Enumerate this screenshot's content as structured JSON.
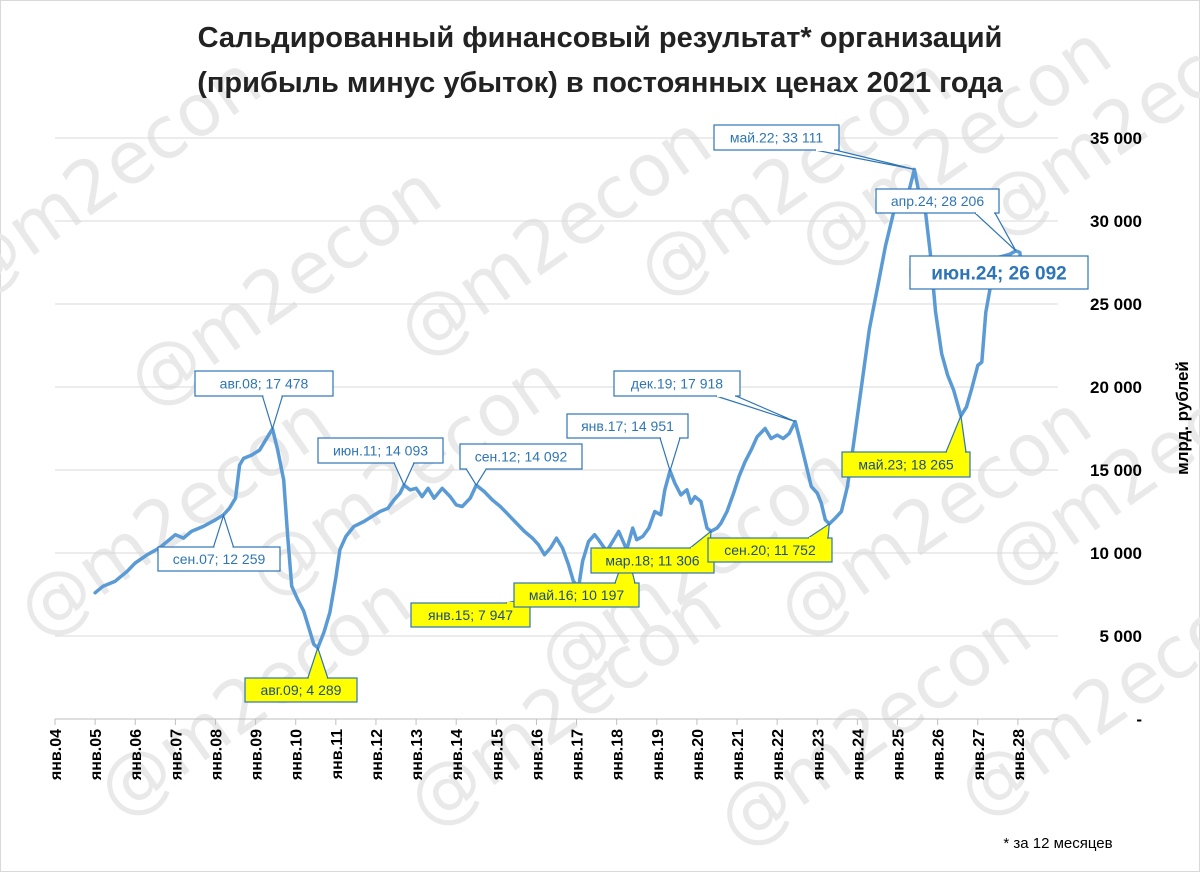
{
  "watermark": "@m2econ",
  "footnote": "* за 12 месяцев",
  "chart_data": {
    "type": "line",
    "title": [
      "Сальдированный финансовый результат* организаций",
      "(прибыль минус убыток) в постоянных ценах 2021 года"
    ],
    "ylabel": "млрд. рублей",
    "xlabel": "",
    "ylim": [
      0,
      35000
    ],
    "yticks": [
      0,
      5000,
      10000,
      15000,
      20000,
      25000,
      30000,
      35000
    ],
    "ytick_labels": [
      "-",
      "5 000",
      "10 000",
      "15 000",
      "20 000",
      "25 000",
      "30 000",
      "35 000"
    ],
    "xlim": [
      2004,
      2029
    ],
    "xtick_labels": [
      "янв.04",
      "янв.05",
      "янв.06",
      "янв.07",
      "янв.08",
      "янв.09",
      "янв.10",
      "янв.11",
      "янв.12",
      "янв.13",
      "янв.14",
      "янв.15",
      "янв.16",
      "янв.17",
      "янв.18",
      "янв.19",
      "янв.20",
      "янв.21",
      "янв.22",
      "янв.23",
      "янв.24",
      "янв.25",
      "янв.26",
      "янв.27",
      "янв.28"
    ],
    "grid": "horizontal",
    "series_color": "#5b9bd5",
    "series": [
      {
        "name": "",
        "points": [
          [
            2005.0,
            7600
          ],
          [
            2005.2,
            8000
          ],
          [
            2005.5,
            8300
          ],
          [
            2005.8,
            8900
          ],
          [
            2006.0,
            9400
          ],
          [
            2006.3,
            9900
          ],
          [
            2006.6,
            10300
          ],
          [
            2006.9,
            10900
          ],
          [
            2007.0,
            11100
          ],
          [
            2007.2,
            10900
          ],
          [
            2007.4,
            11300
          ],
          [
            2007.7,
            11600
          ],
          [
            2008.0,
            12000
          ],
          [
            2008.2,
            12300
          ],
          [
            2008.35,
            12700
          ],
          [
            2008.5,
            13300
          ],
          [
            2008.6,
            15300
          ],
          [
            2008.7,
            15700
          ],
          [
            2008.9,
            15900
          ],
          [
            2009.1,
            16200
          ],
          [
            2009.3,
            17000
          ],
          [
            2009.42,
            17478
          ],
          [
            2009.55,
            16200
          ],
          [
            2009.7,
            14400
          ],
          [
            2009.8,
            11000
          ],
          [
            2009.9,
            8000
          ],
          [
            2010.05,
            7200
          ],
          [
            2010.2,
            6500
          ],
          [
            2010.35,
            5300
          ],
          [
            2010.45,
            4500
          ],
          [
            2010.55,
            4289
          ],
          [
            2010.7,
            5200
          ],
          [
            2010.85,
            6400
          ],
          [
            2011.0,
            8500
          ],
          [
            2011.1,
            10200
          ],
          [
            2011.25,
            11000
          ],
          [
            2011.45,
            11600
          ],
          [
            2011.7,
            11900
          ],
          [
            2011.9,
            12200
          ],
          [
            2012.1,
            12500
          ],
          [
            2012.3,
            12700
          ],
          [
            2012.45,
            13200
          ],
          [
            2012.6,
            13600
          ],
          [
            2012.7,
            14093
          ],
          [
            2012.85,
            13800
          ],
          [
            2013.0,
            13900
          ],
          [
            2013.15,
            13400
          ],
          [
            2013.3,
            13900
          ],
          [
            2013.45,
            13300
          ],
          [
            2013.65,
            13900
          ],
          [
            2013.85,
            13400
          ],
          [
            2014.0,
            12900
          ],
          [
            2014.15,
            12800
          ],
          [
            2014.35,
            13300
          ],
          [
            2014.5,
            14092
          ],
          [
            2014.7,
            13700
          ],
          [
            2014.9,
            13200
          ],
          [
            2015.1,
            12800
          ],
          [
            2015.3,
            12300
          ],
          [
            2015.5,
            11800
          ],
          [
            2015.7,
            11300
          ],
          [
            2015.9,
            10900
          ],
          [
            2016.05,
            10500
          ],
          [
            2016.2,
            9900
          ],
          [
            2016.35,
            10300
          ],
          [
            2016.5,
            10900
          ],
          [
            2016.65,
            10300
          ],
          [
            2016.8,
            9300
          ],
          [
            2016.92,
            8300
          ],
          [
            2017.05,
            7947
          ],
          [
            2017.15,
            9500
          ],
          [
            2017.3,
            10700
          ],
          [
            2017.45,
            11100
          ],
          [
            2017.55,
            10800
          ],
          [
            2017.75,
            10100
          ],
          [
            2017.9,
            10700
          ],
          [
            2018.05,
            11300
          ],
          [
            2018.25,
            10197
          ],
          [
            2018.4,
            11500
          ],
          [
            2018.5,
            10800
          ],
          [
            2018.65,
            11000
          ],
          [
            2018.8,
            11500
          ],
          [
            2018.95,
            12500
          ],
          [
            2019.1,
            12300
          ],
          [
            2019.2,
            13800
          ],
          [
            2019.33,
            14951
          ],
          [
            2019.45,
            14200
          ],
          [
            2019.6,
            13500
          ],
          [
            2019.75,
            13800
          ],
          [
            2019.85,
            13000
          ],
          [
            2019.95,
            13400
          ],
          [
            2020.1,
            13100
          ],
          [
            2020.25,
            11500
          ],
          [
            2020.35,
            11306
          ],
          [
            2020.5,
            11500
          ],
          [
            2020.6,
            11800
          ],
          [
            2020.75,
            12500
          ],
          [
            2020.9,
            13500
          ],
          [
            2021.05,
            14600
          ],
          [
            2021.2,
            15500
          ],
          [
            2021.35,
            16200
          ],
          [
            2021.5,
            17000
          ],
          [
            2021.7,
            17500
          ],
          [
            2021.85,
            16900
          ],
          [
            2022.0,
            17100
          ],
          [
            2022.15,
            16900
          ],
          [
            2022.3,
            17200
          ],
          [
            2022.45,
            17918
          ],
          [
            2022.6,
            16500
          ],
          [
            2022.75,
            15000
          ],
          [
            2022.85,
            14000
          ],
          [
            2023.0,
            13600
          ],
          [
            2023.1,
            13000
          ],
          [
            2023.2,
            12000
          ],
          [
            2023.3,
            11752
          ],
          [
            2023.45,
            12100
          ],
          [
            2023.6,
            12500
          ],
          [
            2023.75,
            14000
          ],
          [
            2023.9,
            16500
          ],
          [
            2024.1,
            20000
          ],
          [
            2024.3,
            23500
          ],
          [
            2024.5,
            26000
          ],
          [
            2024.7,
            28500
          ],
          [
            2024.9,
            30500
          ],
          [
            2025.05,
            31300
          ],
          [
            2025.2,
            31000
          ],
          [
            2025.42,
            33111
          ],
          [
            2025.55,
            31500
          ],
          [
            2025.7,
            30500
          ],
          [
            2025.82,
            28000
          ],
          [
            2025.95,
            24500
          ],
          [
            2026.1,
            22000
          ],
          [
            2026.25,
            20700
          ],
          [
            2026.4,
            19800
          ],
          [
            2026.58,
            18265
          ],
          [
            2026.72,
            18800
          ],
          [
            2026.85,
            19900
          ],
          [
            2027.0,
            21300
          ],
          [
            2027.1,
            21500
          ],
          [
            2027.2,
            24500
          ],
          [
            2027.35,
            26500
          ],
          [
            2027.5,
            27800
          ],
          [
            2027.65,
            27900
          ],
          [
            2027.8,
            28000
          ],
          [
            2027.95,
            28206
          ],
          [
            2028.05,
            28100
          ],
          [
            2028.12,
            26092
          ]
        ]
      }
    ],
    "annotations": [
      {
        "text": "авг.08;  17 478",
        "x": 2009.42,
        "y": 17478,
        "fill": "#ffffff",
        "style": "normal"
      },
      {
        "text": "сен.07;  12 259",
        "x": 2008.2,
        "y": 12259,
        "fill": "#ffffff",
        "style": "normal"
      },
      {
        "text": "авг.09;  4 289",
        "x": 2010.55,
        "y": 4289,
        "fill": "#ffff00",
        "style": "normal"
      },
      {
        "text": "июн.11;  14 093",
        "x": 2012.7,
        "y": 14093,
        "fill": "#ffffff",
        "style": "normal"
      },
      {
        "text": "сен.12;  14 092",
        "x": 2014.5,
        "y": 14092,
        "fill": "#ffffff",
        "style": "normal"
      },
      {
        "text": "янв.15;  7 947",
        "x": 2017.05,
        "y": 7947,
        "fill": "#ffff00",
        "style": "normal"
      },
      {
        "text": "май.16;  10 197",
        "x": 2018.25,
        "y": 10197,
        "fill": "#ffff00",
        "style": "normal"
      },
      {
        "text": "янв.17;  14 951",
        "x": 2019.33,
        "y": 14951,
        "fill": "#ffffff",
        "style": "normal"
      },
      {
        "text": "мар.18;  11 306",
        "x": 2020.35,
        "y": 11306,
        "fill": "#ffff00",
        "style": "normal"
      },
      {
        "text": "дек.19;  17 918",
        "x": 2022.45,
        "y": 17918,
        "fill": "#ffffff",
        "style": "normal"
      },
      {
        "text": "сен.20;  11 752",
        "x": 2023.3,
        "y": 11752,
        "fill": "#ffff00",
        "style": "normal"
      },
      {
        "text": "май.22;  33 111",
        "x": 2025.42,
        "y": 33111,
        "fill": "#ffffff",
        "style": "normal"
      },
      {
        "text": "май.23;  18 265",
        "x": 2026.58,
        "y": 18265,
        "fill": "#ffff00",
        "style": "normal"
      },
      {
        "text": "апр.24;  28 206",
        "x": 2027.95,
        "y": 28206,
        "fill": "#ffffff",
        "style": "normal"
      },
      {
        "text": "июн.24;  26 092",
        "x": 2028.12,
        "y": 26092,
        "fill": "#ffffff",
        "style": "big"
      }
    ]
  }
}
